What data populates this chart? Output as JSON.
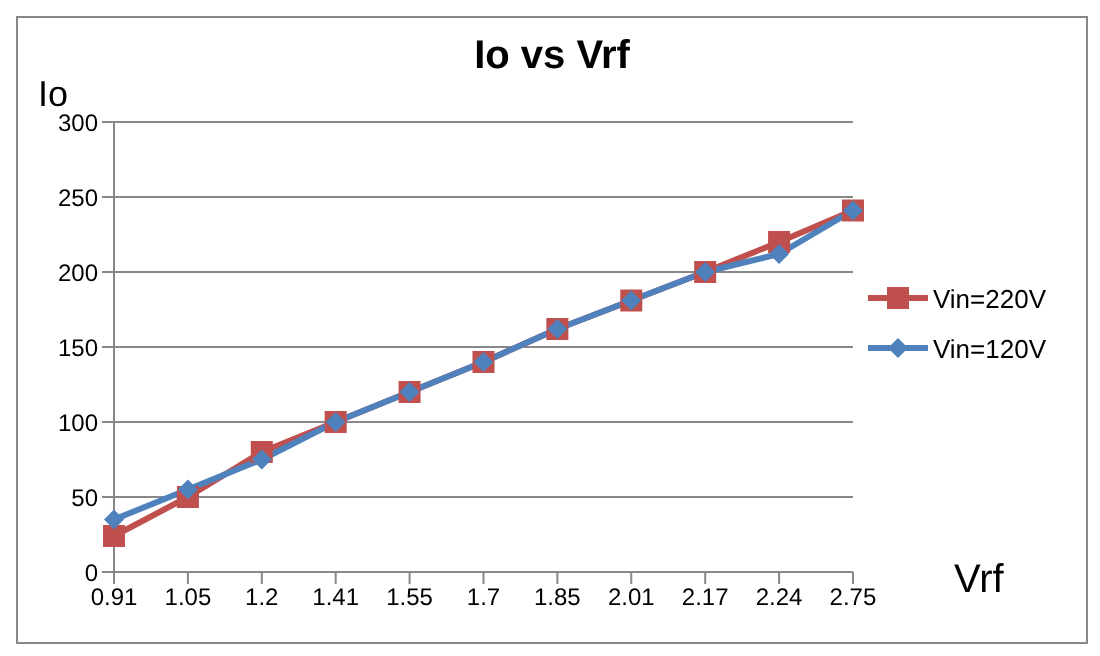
{
  "chart_data": {
    "type": "line",
    "title": "Io vs Vrf",
    "xlabel": "Vrf",
    "ylabel": "Io",
    "categories": [
      "0.91",
      "1.05",
      "1.2",
      "1.41",
      "1.55",
      "1.7",
      "1.85",
      "2.01",
      "2.17",
      "2.24",
      "2.75"
    ],
    "series": [
      {
        "name": "Vin=220V",
        "color": "#c0504d",
        "marker": "square",
        "values": [
          24,
          50,
          80,
          100,
          120,
          140,
          162,
          181,
          200,
          220,
          241
        ]
      },
      {
        "name": "Vin=120V",
        "color": "#4f81bd",
        "marker": "diamond",
        "values": [
          35,
          55,
          75,
          100,
          120,
          140,
          162,
          181,
          200,
          212,
          241
        ]
      }
    ],
    "ylim": [
      0,
      300
    ],
    "yticks": [
      0,
      50,
      100,
      150,
      200,
      250,
      300
    ],
    "grid": "y",
    "legend": "right",
    "line_style": "solid"
  }
}
